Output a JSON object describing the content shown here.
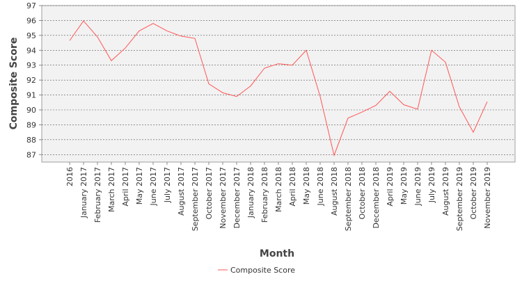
{
  "chart_data": {
    "type": "line",
    "x_label": "Month",
    "y_label": "Composite Score",
    "categories": [
      "2016",
      "January 2017",
      "February 2017",
      "March 2017",
      "April 2017",
      "May 2017",
      "June 2017",
      "July 2017",
      "August 2017",
      "September 2017",
      "October 2017",
      "November 2017",
      "December 2017",
      "January 2018",
      "February 2018",
      "March 2018",
      "April 2018",
      "May 2018",
      "June 2018",
      "August 2018",
      "September 2018",
      "October 2018",
      "December 2018",
      "April 2019",
      "May 2019",
      "June 2019",
      "July 2019",
      "August 2019",
      "September 2019",
      "October 2019",
      "November 2019"
    ],
    "series": [
      {
        "name": "Composite Score",
        "color": "#ff5555",
        "values": [
          94.65,
          95.97,
          94.9,
          93.3,
          94.15,
          95.3,
          95.8,
          95.3,
          94.95,
          94.8,
          91.75,
          91.15,
          90.9,
          91.6,
          92.8,
          93.1,
          93.0,
          94.0,
          90.9,
          86.95,
          89.45,
          89.85,
          90.3,
          91.25,
          90.35,
          90.05,
          94.0,
          93.2,
          90.2,
          88.5,
          90.55
        ]
      }
    ],
    "ylim": [
      86.5,
      97
    ],
    "yticks": [
      87,
      88,
      89,
      90,
      91,
      92,
      93,
      94,
      95,
      96,
      97
    ],
    "grid": true,
    "legend": "bottom"
  }
}
